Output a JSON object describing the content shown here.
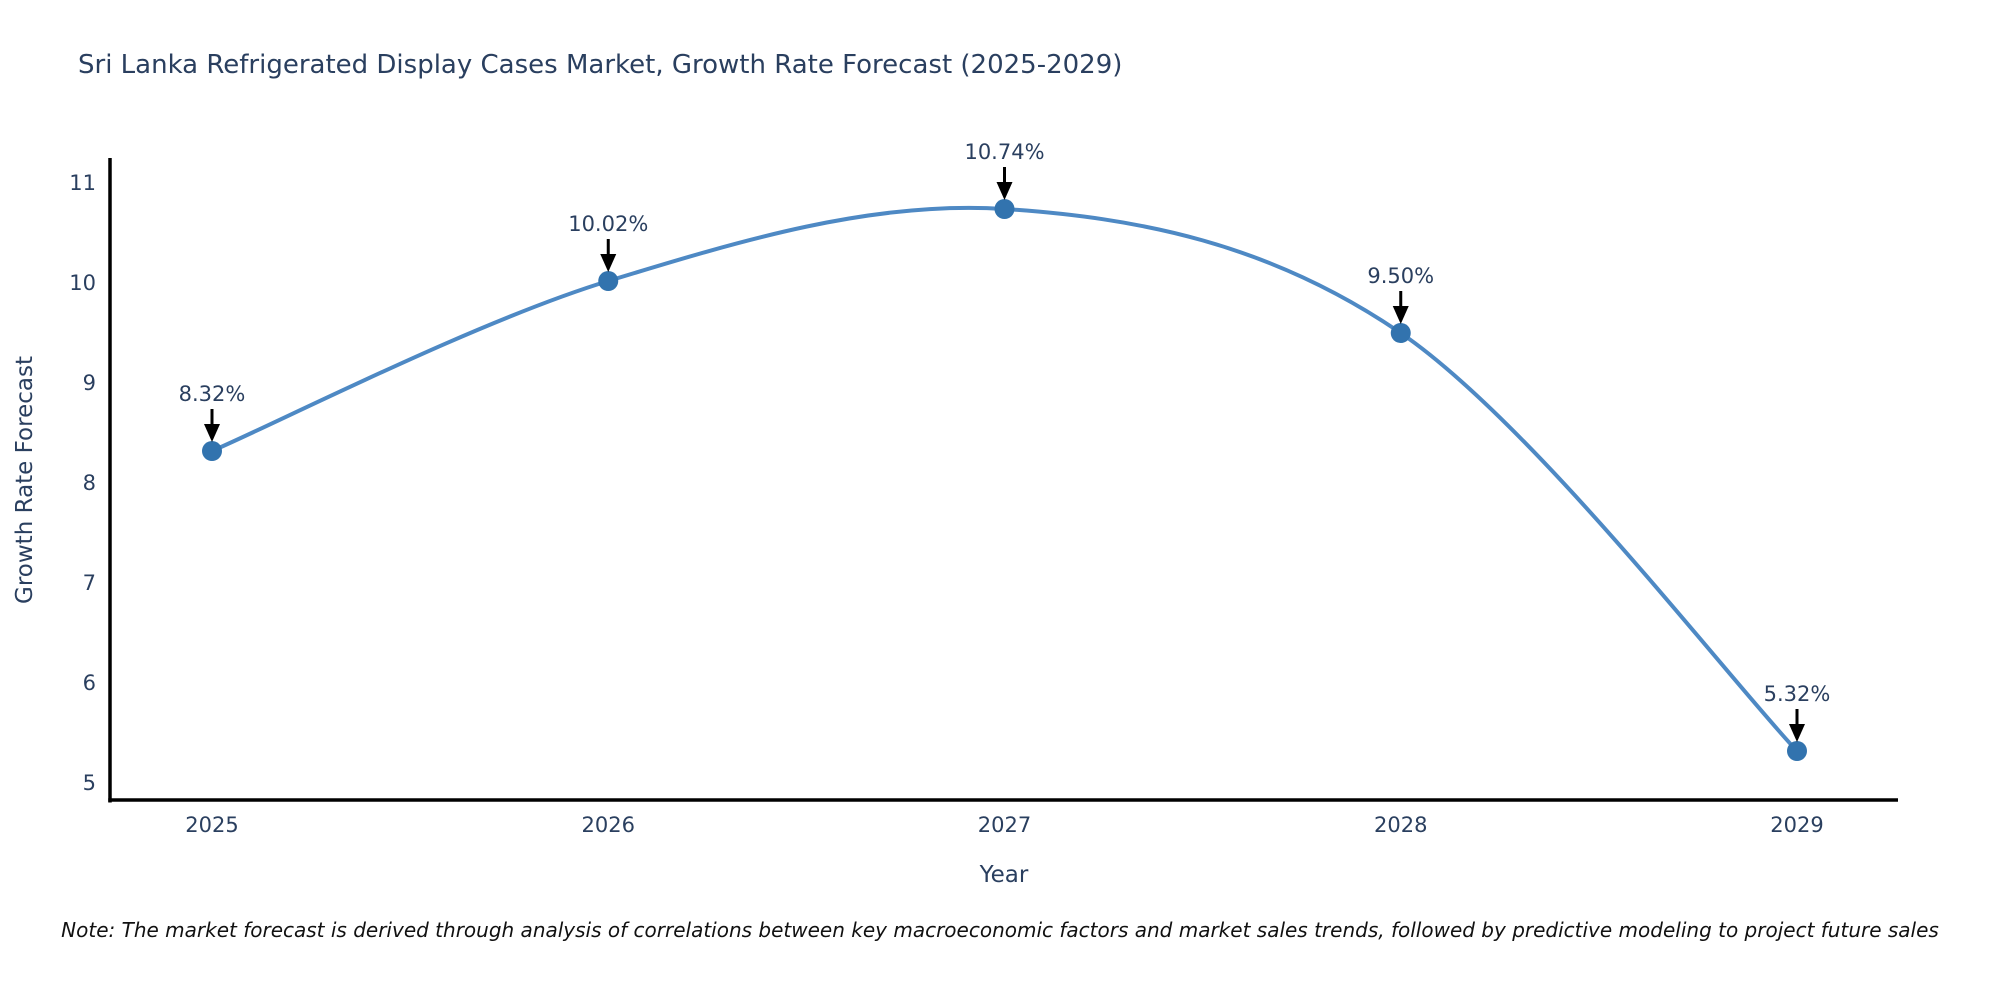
{
  "title": "Sri Lanka Refrigerated Display Cases Market, Growth Rate Forecast (2025-2029)",
  "note": "Note: The market forecast is derived through analysis of correlations between key macroeconomic factors and market sales trends, followed by predictive modeling to project future sales",
  "chart_data": {
    "type": "line",
    "line_shape": "spline",
    "title": "Sri Lanka Refrigerated Display Cases Market, Growth Rate Forecast (2025-2029)",
    "xlabel": "Year",
    "ylabel": "Growth Rate Forecast",
    "x": [
      2025,
      2026,
      2027,
      2028,
      2029
    ],
    "y": [
      8.32,
      10.02,
      10.74,
      9.5,
      5.32
    ],
    "point_labels": [
      "8.32%",
      "10.02%",
      "10.74%",
      "9.50%",
      "5.32%"
    ],
    "x_tick_labels": [
      "2025",
      "2026",
      "2027",
      "2028",
      "2029"
    ],
    "y_ticks": [
      5,
      6,
      7,
      8,
      9,
      10,
      11
    ],
    "ylim": [
      5,
      11
    ],
    "grid": false,
    "legend": "none",
    "colors": {
      "line": "#4e89c4",
      "marker": "#3273ae",
      "axis": "#000000",
      "arrow": "#000000",
      "text": "#2a3f5f",
      "background": "#ffffff"
    }
  }
}
